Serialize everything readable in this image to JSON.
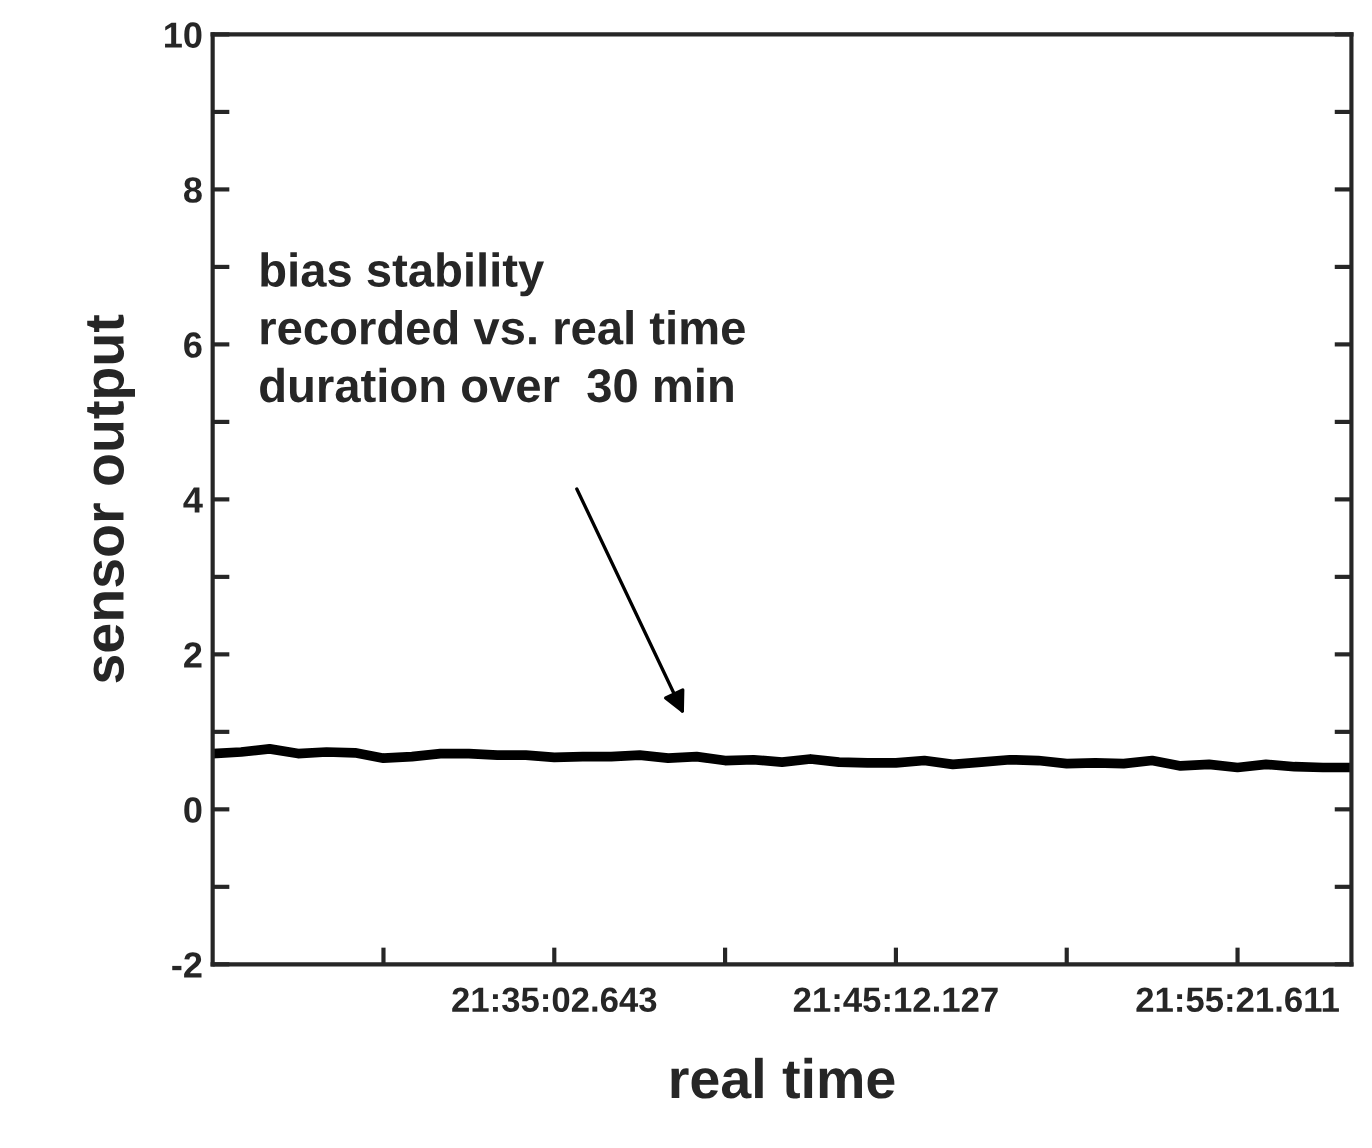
{
  "chart_data": {
    "type": "line",
    "xlabel": "real time",
    "ylabel": "sensor output",
    "categories": [
      null,
      null,
      null,
      null,
      null,
      null,
      null,
      null,
      null,
      null,
      null,
      null,
      "21:35:02.643",
      null,
      null,
      null,
      null,
      null,
      null,
      null,
      null,
      null,
      null,
      null,
      "21:45:12.127",
      null,
      null,
      null,
      null,
      null,
      null,
      null,
      null,
      null,
      null,
      null,
      "21:55:21.611",
      null,
      null,
      null,
      null
    ],
    "ylim": [
      -2,
      10
    ],
    "yticks": [
      -2,
      {
        "value": -1,
        "label": null
      },
      0,
      {
        "value": 1,
        "label": null
      },
      2,
      {
        "value": 3,
        "label": null
      },
      4,
      {
        "value": 5,
        "label": null
      },
      6,
      {
        "value": 7,
        "label": null
      },
      8,
      {
        "value": 9,
        "label": null
      },
      10
    ],
    "grid": false,
    "marker": "none",
    "line_style": "solid",
    "legend": false,
    "annotations": [
      "bias stability\nrecorded vs. real time\nduration over  30 min"
    ],
    "series": [
      {
        "color": "#000000",
        "values": [
          0.72,
          0.74,
          0.78,
          0.72,
          0.74,
          0.73,
          0.66,
          0.68,
          0.72,
          0.72,
          0.7,
          0.7,
          0.67,
          0.68,
          0.68,
          0.7,
          0.66,
          0.68,
          0.63,
          0.64,
          0.61,
          0.65,
          0.61,
          0.6,
          0.6,
          0.63,
          0.58,
          0.61,
          0.64,
          0.63,
          0.59,
          0.6,
          0.59,
          0.63,
          0.56,
          0.58,
          0.54,
          0.58,
          0.55,
          0.54,
          0.54
        ]
      }
    ]
  }
}
